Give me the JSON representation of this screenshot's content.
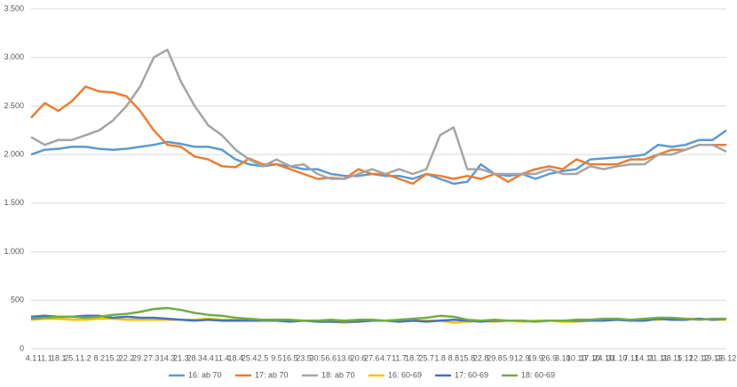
{
  "chart_data": {
    "type": "line",
    "categories": [
      "4.1",
      "11.1",
      "18.1",
      "25.1",
      "1.2",
      "8.2",
      "15.2",
      "22.2",
      "29.2",
      "7.3",
      "14.3",
      "21.3",
      "28.3",
      "4.4",
      "11.4",
      "18.4",
      "25.4",
      "2.5",
      "9.5",
      "16.5",
      "23.5",
      "30.5",
      "6.6",
      "13.6",
      "20.6",
      "27.6",
      "4.7",
      "11.7",
      "18.7",
      "25.7",
      "1.8",
      "8.8",
      "15.8",
      "22.8",
      "29.8",
      "5.9",
      "12.9",
      "19.9",
      "26.9",
      "3.10",
      "10.10",
      "17.10",
      "24.10",
      "31.10",
      "7.11",
      "14.11",
      "21.11",
      "28.11",
      "5.12",
      "12.12",
      "19.12",
      "26.12"
    ],
    "series": [
      {
        "name": "16: ab 70",
        "color": "#5b9bd5",
        "values": [
          2000,
          2050,
          2060,
          2080,
          2080,
          2060,
          2050,
          2060,
          2080,
          2100,
          2130,
          2110,
          2080,
          2080,
          2050,
          1950,
          1900,
          1880,
          1900,
          1880,
          1850,
          1850,
          1800,
          1780,
          1780,
          1800,
          1780,
          1780,
          1750,
          1800,
          1750,
          1700,
          1720,
          1900,
          1800,
          1780,
          1800,
          1750,
          1800,
          1830,
          1850,
          1950,
          1960,
          1970,
          1980,
          2000,
          2100,
          2080,
          2100,
          2150,
          2150,
          2250
        ]
      },
      {
        "name": "17: ab 70",
        "color": "#ed7d31",
        "values": [
          2380,
          2530,
          2450,
          2550,
          2700,
          2650,
          2640,
          2600,
          2450,
          2250,
          2100,
          2080,
          1980,
          1950,
          1880,
          1870,
          1960,
          1900,
          1900,
          1850,
          1800,
          1750,
          1760,
          1750,
          1850,
          1800,
          1800,
          1750,
          1700,
          1800,
          1780,
          1750,
          1780,
          1750,
          1800,
          1720,
          1800,
          1850,
          1880,
          1850,
          1950,
          1900,
          1900,
          1900,
          1950,
          1950,
          2000,
          2050,
          2050,
          2100,
          2100,
          2100
        ]
      },
      {
        "name": "18: ab 70",
        "color": "#a5a5a5",
        "values": [
          2180,
          2100,
          2150,
          2150,
          2200,
          2250,
          2350,
          2500,
          2700,
          3000,
          3080,
          2750,
          2500,
          2300,
          2200,
          2050,
          1950,
          1880,
          1950,
          1880,
          1900,
          1800,
          1750,
          1750,
          1800,
          1850,
          1800,
          1850,
          1800,
          1850,
          2200,
          2280,
          1850,
          1850,
          1800,
          1800,
          1800,
          1800,
          1850,
          1800,
          1800,
          1880,
          1850,
          1880,
          1900,
          1900,
          2000,
          2000,
          2050,
          2100,
          2100,
          2030
        ]
      },
      {
        "name": "16: 60-69",
        "color": "#ffc000",
        "values": [
          300,
          310,
          310,
          300,
          300,
          310,
          310,
          300,
          300,
          300,
          300,
          300,
          300,
          310,
          300,
          300,
          300,
          290,
          300,
          290,
          290,
          280,
          280,
          270,
          280,
          290,
          290,
          280,
          290,
          290,
          290,
          270,
          280,
          290,
          280,
          290,
          280,
          290,
          290,
          280,
          280,
          290,
          300,
          300,
          300,
          300,
          300,
          310,
          310,
          310,
          300,
          300
        ]
      },
      {
        "name": "17: 60-69",
        "color": "#4472c4",
        "values": [
          330,
          340,
          330,
          330,
          340,
          340,
          320,
          330,
          320,
          320,
          310,
          300,
          290,
          300,
          290,
          290,
          290,
          290,
          290,
          280,
          290,
          280,
          280,
          280,
          280,
          290,
          290,
          280,
          290,
          280,
          290,
          300,
          290,
          280,
          290,
          290,
          290,
          280,
          290,
          290,
          290,
          290,
          290,
          300,
          290,
          290,
          310,
          300,
          300,
          310,
          300,
          310
        ]
      },
      {
        "name": "18: 60-69",
        "color": "#70ad47",
        "values": [
          310,
          320,
          330,
          330,
          320,
          330,
          350,
          360,
          380,
          410,
          420,
          400,
          370,
          350,
          340,
          320,
          310,
          300,
          300,
          300,
          290,
          290,
          300,
          290,
          300,
          300,
          290,
          300,
          310,
          320,
          340,
          330,
          300,
          290,
          300,
          290,
          290,
          280,
          290,
          290,
          300,
          300,
          310,
          310,
          300,
          310,
          320,
          320,
          310,
          300,
          310,
          310
        ]
      }
    ],
    "ylim": [
      0,
      3500
    ],
    "yticks": [
      0,
      500,
      {
        "value": 1000,
        "label": "1.000"
      },
      {
        "value": 1500,
        "label": "1.500"
      },
      {
        "value": 2000,
        "label": "2.000"
      },
      {
        "value": 2500,
        "label": "2.500"
      },
      {
        "value": 3000,
        "label": "3.000"
      },
      {
        "value": 3500,
        "label": "3.500"
      }
    ],
    "grid": true,
    "legend": "bottom"
  }
}
